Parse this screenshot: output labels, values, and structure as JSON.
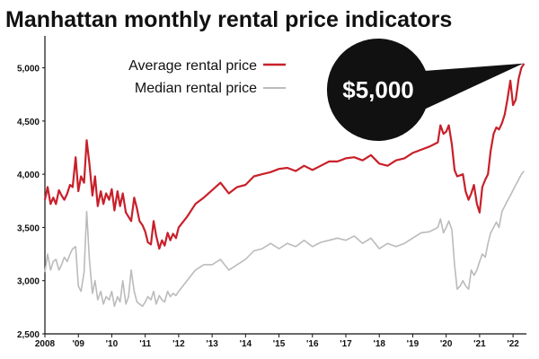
{
  "chart_data": {
    "type": "line",
    "title": "Manhattan monthly rental price indicators",
    "xlabel": "",
    "ylabel": "",
    "ylim": [
      2500,
      5300
    ],
    "xlim": [
      2008,
      2022.4
    ],
    "grid": false,
    "legend_position": "top-left",
    "y_ticks": [
      2500,
      3000,
      3500,
      4000,
      4500,
      5000
    ],
    "y_tick_labels": [
      "2,500",
      "3,000",
      "3,500",
      "4,000",
      "4,500",
      "5,000"
    ],
    "x_ticks": [
      2008,
      2009,
      2010,
      2011,
      2012,
      2013,
      2014,
      2015,
      2016,
      2017,
      2018,
      2019,
      2020,
      2021,
      2022
    ],
    "x_tick_labels": [
      "2008",
      "'09",
      "'10",
      "'11",
      "'12",
      "'13",
      "'14",
      "'15",
      "'16",
      "'17",
      "'18",
      "'19",
      "'20",
      "'21",
      "'22"
    ],
    "annotation": {
      "text": "$5,000",
      "x": 2022.3,
      "y": 5040
    },
    "series": [
      {
        "name": "Average rental price",
        "color": "#c8202a",
        "x": [
          2008.0,
          2008.08,
          2008.17,
          2008.25,
          2008.33,
          2008.42,
          2008.5,
          2008.58,
          2008.67,
          2008.75,
          2008.83,
          2008.92,
          2009.0,
          2009.08,
          2009.17,
          2009.25,
          2009.33,
          2009.42,
          2009.5,
          2009.58,
          2009.67,
          2009.75,
          2009.83,
          2009.92,
          2010.0,
          2010.08,
          2010.17,
          2010.25,
          2010.33,
          2010.42,
          2010.5,
          2010.58,
          2010.67,
          2010.75,
          2010.83,
          2010.92,
          2011.0,
          2011.08,
          2011.17,
          2011.25,
          2011.33,
          2011.42,
          2011.5,
          2011.58,
          2011.67,
          2011.75,
          2011.83,
          2011.92,
          2012.0,
          2012.25,
          2012.5,
          2012.75,
          2013.0,
          2013.25,
          2013.5,
          2013.75,
          2014.0,
          2014.25,
          2014.5,
          2014.75,
          2015.0,
          2015.25,
          2015.5,
          2015.75,
          2016.0,
          2016.25,
          2016.5,
          2016.75,
          2017.0,
          2017.25,
          2017.5,
          2017.75,
          2018.0,
          2018.25,
          2018.5,
          2018.75,
          2019.0,
          2019.25,
          2019.5,
          2019.75,
          2019.83,
          2019.92,
          2020.0,
          2020.08,
          2020.17,
          2020.25,
          2020.33,
          2020.42,
          2020.5,
          2020.58,
          2020.67,
          2020.75,
          2020.83,
          2020.92,
          2021.0,
          2021.08,
          2021.17,
          2021.25,
          2021.33,
          2021.42,
          2021.5,
          2021.58,
          2021.67,
          2021.75,
          2021.83,
          2021.92,
          2022.0,
          2022.08,
          2022.17,
          2022.25,
          2022.33
        ],
        "values": [
          3760,
          3880,
          3720,
          3780,
          3720,
          3850,
          3800,
          3760,
          3820,
          3900,
          3880,
          4160,
          3840,
          3980,
          3920,
          4320,
          4100,
          3800,
          3980,
          3700,
          3840,
          3720,
          3820,
          3760,
          3860,
          3660,
          3840,
          3700,
          3820,
          3640,
          3600,
          3560,
          3780,
          3680,
          3560,
          3520,
          3460,
          3360,
          3340,
          3560,
          3420,
          3300,
          3380,
          3330,
          3450,
          3380,
          3440,
          3400,
          3500,
          3600,
          3720,
          3780,
          3850,
          3920,
          3820,
          3880,
          3900,
          3980,
          4000,
          4020,
          4050,
          4060,
          4030,
          4080,
          4040,
          4080,
          4120,
          4120,
          4150,
          4160,
          4130,
          4180,
          4100,
          4080,
          4130,
          4150,
          4200,
          4230,
          4260,
          4300,
          4460,
          4380,
          4400,
          4460,
          4280,
          4040,
          3980,
          3990,
          4000,
          3840,
          3760,
          3820,
          3900,
          3720,
          3640,
          3880,
          3950,
          4000,
          4220,
          4380,
          4440,
          4420,
          4480,
          4560,
          4700,
          4880,
          4650,
          4700,
          4900,
          5000,
          5040
        ]
      },
      {
        "name": "Median rental price",
        "color": "#bbbbbb",
        "x": [
          2008.0,
          2008.08,
          2008.17,
          2008.25,
          2008.33,
          2008.42,
          2008.5,
          2008.58,
          2008.67,
          2008.75,
          2008.83,
          2008.92,
          2009.0,
          2009.08,
          2009.17,
          2009.25,
          2009.33,
          2009.42,
          2009.5,
          2009.58,
          2009.67,
          2009.75,
          2009.83,
          2009.92,
          2010.0,
          2010.08,
          2010.17,
          2010.25,
          2010.33,
          2010.42,
          2010.5,
          2010.58,
          2010.67,
          2010.75,
          2010.83,
          2010.92,
          2011.0,
          2011.08,
          2011.17,
          2011.25,
          2011.33,
          2011.42,
          2011.5,
          2011.58,
          2011.67,
          2011.75,
          2011.83,
          2011.92,
          2012.0,
          2012.25,
          2012.5,
          2012.75,
          2013.0,
          2013.25,
          2013.5,
          2013.75,
          2014.0,
          2014.25,
          2014.5,
          2014.75,
          2015.0,
          2015.25,
          2015.5,
          2015.75,
          2016.0,
          2016.25,
          2016.5,
          2016.75,
          2017.0,
          2017.25,
          2017.5,
          2017.75,
          2018.0,
          2018.25,
          2018.5,
          2018.75,
          2019.0,
          2019.25,
          2019.5,
          2019.75,
          2019.83,
          2019.92,
          2020.0,
          2020.08,
          2020.17,
          2020.25,
          2020.33,
          2020.42,
          2020.5,
          2020.58,
          2020.67,
          2020.75,
          2020.83,
          2020.92,
          2021.0,
          2021.08,
          2021.17,
          2021.25,
          2021.33,
          2021.42,
          2021.5,
          2021.58,
          2021.67,
          2021.75,
          2021.83,
          2021.92,
          2022.0,
          2022.08,
          2022.17,
          2022.25,
          2022.33
        ],
        "values": [
          3080,
          3250,
          3100,
          3180,
          3200,
          3100,
          3150,
          3220,
          3180,
          3250,
          3300,
          3320,
          2950,
          2900,
          3080,
          3650,
          3200,
          2880,
          3000,
          2820,
          2900,
          2780,
          2850,
          2820,
          2900,
          2760,
          2850,
          2800,
          3000,
          2780,
          2850,
          3100,
          2900,
          2800,
          2780,
          2760,
          2800,
          2850,
          2820,
          2900,
          2780,
          2860,
          2820,
          2800,
          2900,
          2850,
          2880,
          2860,
          2900,
          3000,
          3100,
          3150,
          3150,
          3200,
          3100,
          3150,
          3200,
          3280,
          3300,
          3350,
          3300,
          3350,
          3320,
          3380,
          3320,
          3360,
          3380,
          3400,
          3380,
          3420,
          3350,
          3400,
          3300,
          3350,
          3320,
          3350,
          3400,
          3450,
          3460,
          3500,
          3580,
          3450,
          3500,
          3560,
          3480,
          3150,
          2920,
          2950,
          3000,
          2950,
          2920,
          3100,
          3050,
          3100,
          3180,
          3250,
          3220,
          3350,
          3450,
          3500,
          3550,
          3500,
          3650,
          3700,
          3750,
          3800,
          3850,
          3900,
          3950,
          4000,
          4030
        ]
      }
    ]
  }
}
